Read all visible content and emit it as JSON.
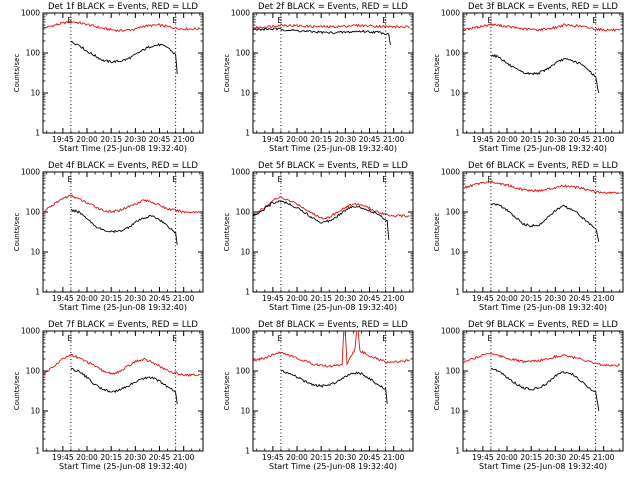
{
  "figure_label": "Multi-panel detector light curves",
  "colors": {
    "events": "#000000",
    "lld": "#e01010",
    "axes": "#000000"
  },
  "common": {
    "xlabel": "Start Time (25-Jun-08 19:32:40)",
    "ylabel": "Counts/sec",
    "x_ticks": [
      "19:45",
      "20:00",
      "20:15",
      "20:30",
      "20:45",
      "21:00"
    ],
    "y_ticks": [
      "1",
      "10",
      "100",
      "1000"
    ],
    "marker": "E"
  },
  "chart_data": [
    {
      "type": "line",
      "title": "Det 1f BLACK = Events, RED = LLD",
      "xlabel": "Start Time (25-Jun-08 19:32:40)",
      "ylabel": "Counts/sec",
      "y_scale": "log",
      "ylim": [
        1,
        1000
      ],
      "xlim": [
        "19:32:40",
        "21:12"
      ],
      "x_ticks": [
        "19:45",
        "20:00",
        "20:15",
        "20:30",
        "20:45",
        "21:00"
      ],
      "y_ticks": [
        1,
        10,
        100,
        1000
      ],
      "vlines": [
        "19:50",
        "20:55"
      ],
      "markers": [
        "E",
        "E"
      ],
      "series": [
        {
          "name": "LLD",
          "color": "red",
          "x": [
            "19:32:40",
            "19:45",
            "19:50",
            "20:00",
            "20:10",
            "20:20",
            "20:30",
            "20:35",
            "20:45",
            "20:55",
            "21:00",
            "21:10"
          ],
          "y": [
            420,
            560,
            620,
            520,
            410,
            360,
            390,
            470,
            500,
            420,
            400,
            400
          ]
        },
        {
          "name": "Events",
          "color": "black",
          "x": [
            "19:50",
            "19:55",
            "20:00",
            "20:05",
            "20:10",
            "20:15",
            "20:20",
            "20:25",
            "20:30",
            "20:35",
            "20:40",
            "20:45",
            "20:50",
            "20:55",
            "20:56"
          ],
          "y": [
            190,
            160,
            110,
            85,
            65,
            60,
            62,
            70,
            90,
            120,
            150,
            160,
            140,
            90,
            30
          ]
        }
      ]
    },
    {
      "type": "line",
      "title": "Det 2f BLACK = Events, RED = LLD",
      "xlabel": "Start Time (25-Jun-08 19:32:40)",
      "ylabel": "Counts/sec",
      "y_scale": "log",
      "ylim": [
        1,
        1000
      ],
      "xlim": [
        "19:32:40",
        "21:12"
      ],
      "x_ticks": [
        "19:45",
        "20:00",
        "20:15",
        "20:30",
        "20:45",
        "21:00"
      ],
      "y_ticks": [
        1,
        10,
        100,
        1000
      ],
      "vlines": [
        "19:50",
        "20:55"
      ],
      "markers": [
        "E",
        "E"
      ],
      "series": [
        {
          "name": "LLD",
          "color": "red",
          "x": [
            "19:32:40",
            "19:45",
            "19:50",
            "20:00",
            "20:10",
            "20:20",
            "20:30",
            "20:35",
            "20:45",
            "20:55",
            "21:00",
            "21:10"
          ],
          "y": [
            420,
            470,
            500,
            480,
            460,
            450,
            470,
            490,
            480,
            460,
            450,
            450
          ]
        },
        {
          "name": "Events",
          "color": "black",
          "x": [
            "19:32:40",
            "19:45",
            "19:50",
            "20:00",
            "20:10",
            "20:20",
            "20:30",
            "20:40",
            "20:50",
            "20:57",
            "20:58"
          ],
          "y": [
            380,
            400,
            390,
            360,
            340,
            320,
            330,
            350,
            330,
            300,
            160
          ]
        }
      ]
    },
    {
      "type": "line",
      "title": "Det 3f BLACK = Events, RED = LLD",
      "xlabel": "Start Time (25-Jun-08 19:32:40)",
      "ylabel": "Counts/sec",
      "y_scale": "log",
      "ylim": [
        1,
        1000
      ],
      "xlim": [
        "19:32:40",
        "21:12"
      ],
      "x_ticks": [
        "19:45",
        "20:00",
        "20:15",
        "20:30",
        "20:45",
        "21:00"
      ],
      "y_ticks": [
        1,
        10,
        100,
        1000
      ],
      "vlines": [
        "19:50",
        "20:55"
      ],
      "markers": [
        "E",
        "E"
      ],
      "series": [
        {
          "name": "LLD",
          "color": "red",
          "x": [
            "19:32:40",
            "19:45",
            "19:50",
            "20:00",
            "20:10",
            "20:20",
            "20:30",
            "20:35",
            "20:45",
            "20:55",
            "21:00",
            "21:10"
          ],
          "y": [
            380,
            470,
            520,
            460,
            400,
            380,
            430,
            500,
            470,
            400,
            380,
            370
          ]
        },
        {
          "name": "Events",
          "color": "black",
          "x": [
            "19:50",
            "19:55",
            "20:00",
            "20:05",
            "20:10",
            "20:15",
            "20:20",
            "20:25",
            "20:30",
            "20:35",
            "20:40",
            "20:45",
            "20:50",
            "20:55",
            "20:57"
          ],
          "y": [
            90,
            80,
            55,
            40,
            32,
            30,
            32,
            40,
            55,
            70,
            65,
            55,
            40,
            25,
            10
          ]
        }
      ]
    },
    {
      "type": "line",
      "title": "Det 4f BLACK = Events, RED = LLD",
      "xlabel": "Start Time (25-Jun-08 19:32:40)",
      "ylabel": "Counts/sec",
      "y_scale": "log",
      "ylim": [
        1,
        1000
      ],
      "xlim": [
        "19:32:40",
        "21:12"
      ],
      "x_ticks": [
        "19:45",
        "20:00",
        "20:15",
        "20:30",
        "20:45",
        "21:00"
      ],
      "y_ticks": [
        1,
        10,
        100,
        1000
      ],
      "vlines": [
        "19:50",
        "20:55"
      ],
      "markers": [
        "E",
        "E"
      ],
      "series": [
        {
          "name": "LLD",
          "color": "red",
          "x": [
            "19:32:40",
            "19:40",
            "19:45",
            "19:50",
            "20:00",
            "20:10",
            "20:15",
            "20:20",
            "20:30",
            "20:35",
            "20:40",
            "20:50",
            "21:00",
            "21:10"
          ],
          "y": [
            100,
            160,
            220,
            260,
            170,
            110,
            100,
            110,
            160,
            200,
            180,
            120,
            100,
            100
          ]
        },
        {
          "name": "Events",
          "color": "black",
          "x": [
            "19:50",
            "19:55",
            "20:00",
            "20:05",
            "20:10",
            "20:15",
            "20:20",
            "20:25",
            "20:30",
            "20:35",
            "20:40",
            "20:45",
            "20:50",
            "20:55",
            "20:56"
          ],
          "y": [
            110,
            100,
            70,
            45,
            35,
            32,
            33,
            40,
            55,
            70,
            80,
            65,
            45,
            30,
            15
          ]
        }
      ]
    },
    {
      "type": "line",
      "title": "Det 5f BLACK = Events, RED = LLD",
      "xlabel": "Start Time (25-Jun-08 19:32:40)",
      "ylabel": "Counts/sec",
      "y_scale": "log",
      "ylim": [
        1,
        1000
      ],
      "xlim": [
        "19:32:40",
        "21:12"
      ],
      "x_ticks": [
        "19:45",
        "20:00",
        "20:15",
        "20:30",
        "20:45",
        "21:00"
      ],
      "y_ticks": [
        1,
        10,
        100,
        1000
      ],
      "vlines": [
        "19:50",
        "20:55"
      ],
      "markers": [
        "E",
        "E"
      ],
      "series": [
        {
          "name": "LLD",
          "color": "red",
          "x": [
            "19:32:40",
            "19:40",
            "19:45",
            "19:50",
            "20:00",
            "20:10",
            "20:15",
            "20:20",
            "20:30",
            "20:35",
            "20:40",
            "20:50",
            "21:00",
            "21:10"
          ],
          "y": [
            80,
            130,
            200,
            230,
            160,
            90,
            70,
            75,
            130,
            160,
            150,
            100,
            80,
            80
          ]
        },
        {
          "name": "Events",
          "color": "black",
          "x": [
            "19:32:40",
            "19:40",
            "19:45",
            "19:50",
            "20:00",
            "20:10",
            "20:15",
            "20:20",
            "20:30",
            "20:35",
            "20:40",
            "20:50",
            "20:56",
            "20:57"
          ],
          "y": [
            80,
            120,
            170,
            190,
            130,
            70,
            55,
            60,
            110,
            140,
            130,
            90,
            60,
            20
          ]
        }
      ]
    },
    {
      "type": "line",
      "title": "Det 6f BLACK = Events, RED = LLD",
      "xlabel": "Start Time (25-Jun-08 19:32:40)",
      "ylabel": "Counts/sec",
      "y_scale": "log",
      "ylim": [
        1,
        1000
      ],
      "xlim": [
        "19:32:40",
        "21:12"
      ],
      "x_ticks": [
        "19:45",
        "20:00",
        "20:15",
        "20:30",
        "20:45",
        "21:00"
      ],
      "y_ticks": [
        1,
        10,
        100,
        1000
      ],
      "vlines": [
        "19:50",
        "20:55"
      ],
      "markers": [
        "E",
        "E"
      ],
      "series": [
        {
          "name": "LLD",
          "color": "red",
          "x": [
            "19:32:40",
            "19:40",
            "19:45",
            "19:50",
            "20:00",
            "20:10",
            "20:20",
            "20:30",
            "20:35",
            "20:45",
            "20:55",
            "21:00",
            "21:10"
          ],
          "y": [
            400,
            480,
            540,
            570,
            470,
            360,
            340,
            400,
            450,
            400,
            320,
            300,
            300
          ]
        },
        {
          "name": "Events",
          "color": "black",
          "x": [
            "19:50",
            "19:55",
            "20:00",
            "20:05",
            "20:10",
            "20:15",
            "20:20",
            "20:25",
            "20:30",
            "20:35",
            "20:40",
            "20:45",
            "20:50",
            "20:55",
            "20:57"
          ],
          "y": [
            160,
            150,
            110,
            75,
            50,
            45,
            48,
            70,
            110,
            140,
            120,
            85,
            55,
            40,
            18
          ]
        }
      ]
    },
    {
      "type": "line",
      "title": "Det 7f BLACK = Events, RED = LLD",
      "xlabel": "Start Time (25-Jun-08 19:32:40)",
      "ylabel": "Counts/sec",
      "y_scale": "log",
      "ylim": [
        1,
        1000
      ],
      "xlim": [
        "19:32:40",
        "21:12"
      ],
      "x_ticks": [
        "19:45",
        "20:00",
        "20:15",
        "20:30",
        "20:45",
        "21:00"
      ],
      "y_ticks": [
        1,
        10,
        100,
        1000
      ],
      "vlines": [
        "19:50",
        "20:55"
      ],
      "markers": [
        "E",
        "E"
      ],
      "series": [
        {
          "name": "LLD",
          "color": "red",
          "x": [
            "19:32:40",
            "19:40",
            "19:45",
            "19:50",
            "20:00",
            "20:10",
            "20:15",
            "20:20",
            "20:30",
            "20:35",
            "20:40",
            "20:50",
            "21:00",
            "21:10"
          ],
          "y": [
            80,
            140,
            200,
            260,
            170,
            100,
            85,
            95,
            170,
            200,
            170,
            100,
            80,
            80
          ]
        },
        {
          "name": "Events",
          "color": "black",
          "x": [
            "19:50",
            "19:55",
            "20:00",
            "20:05",
            "20:10",
            "20:15",
            "20:20",
            "20:25",
            "20:30",
            "20:35",
            "20:40",
            "20:45",
            "20:50",
            "20:55",
            "20:56"
          ],
          "y": [
            110,
            100,
            70,
            45,
            35,
            30,
            33,
            40,
            55,
            65,
            70,
            55,
            40,
            30,
            15
          ]
        }
      ]
    },
    {
      "type": "line",
      "title": "Det 8f BLACK = Events, RED = LLD",
      "xlabel": "Start Time (25-Jun-08 19:32:40)",
      "ylabel": "Counts/sec",
      "y_scale": "log",
      "ylim": [
        1,
        1000
      ],
      "xlim": [
        "19:32:40",
        "21:12"
      ],
      "x_ticks": [
        "19:45",
        "20:00",
        "20:15",
        "20:30",
        "20:45",
        "21:00"
      ],
      "y_ticks": [
        1,
        10,
        100,
        1000
      ],
      "vlines": [
        "19:50",
        "20:55"
      ],
      "markers": [
        "E",
        "E"
      ],
      "series": [
        {
          "name": "LLD",
          "color": "red",
          "x": [
            "19:32:40",
            "19:40",
            "19:50",
            "20:00",
            "20:10",
            "20:20",
            "20:28",
            "20:29",
            "20:30",
            "20:31",
            "20:36",
            "20:37",
            "20:38",
            "20:39",
            "20:45",
            "20:55",
            "21:05",
            "21:10"
          ],
          "y": [
            180,
            210,
            300,
            210,
            150,
            130,
            145,
            1000,
            1000,
            150,
            350,
            1000,
            1000,
            320,
            240,
            170,
            170,
            190
          ]
        },
        {
          "name": "Events",
          "color": "black",
          "x": [
            "19:50",
            "19:55",
            "20:00",
            "20:05",
            "20:10",
            "20:15",
            "20:20",
            "20:25",
            "20:30",
            "20:35",
            "20:40",
            "20:45",
            "20:50",
            "20:55",
            "20:56"
          ],
          "y": [
            100,
            90,
            70,
            55,
            45,
            42,
            45,
            55,
            75,
            90,
            85,
            65,
            45,
            35,
            15
          ]
        }
      ]
    },
    {
      "type": "line",
      "title": "Det 9f BLACK = Events, RED = LLD",
      "xlabel": "Start Time (25-Jun-08 19:32:40)",
      "ylabel": "Counts/sec",
      "y_scale": "log",
      "ylim": [
        1,
        1000
      ],
      "xlim": [
        "19:32:40",
        "21:12"
      ],
      "x_ticks": [
        "19:45",
        "20:00",
        "20:15",
        "20:30",
        "20:45",
        "21:00"
      ],
      "y_ticks": [
        1,
        10,
        100,
        1000
      ],
      "vlines": [
        "19:50",
        "20:55"
      ],
      "markers": [
        "E",
        "E"
      ],
      "series": [
        {
          "name": "LLD",
          "color": "red",
          "x": [
            "19:32:40",
            "19:40",
            "19:45",
            "19:50",
            "20:00",
            "20:10",
            "20:20",
            "20:30",
            "20:35",
            "20:45",
            "20:55",
            "21:00",
            "21:10"
          ],
          "y": [
            160,
            210,
            260,
            280,
            210,
            170,
            180,
            230,
            250,
            200,
            150,
            140,
            140
          ]
        },
        {
          "name": "Events",
          "color": "black",
          "x": [
            "19:50",
            "19:55",
            "20:00",
            "20:05",
            "20:10",
            "20:15",
            "20:20",
            "20:25",
            "20:30",
            "20:35",
            "20:40",
            "20:45",
            "20:50",
            "20:55",
            "20:57"
          ],
          "y": [
            110,
            100,
            70,
            50,
            38,
            35,
            38,
            50,
            75,
            95,
            85,
            60,
            40,
            30,
            10
          ]
        }
      ]
    }
  ]
}
